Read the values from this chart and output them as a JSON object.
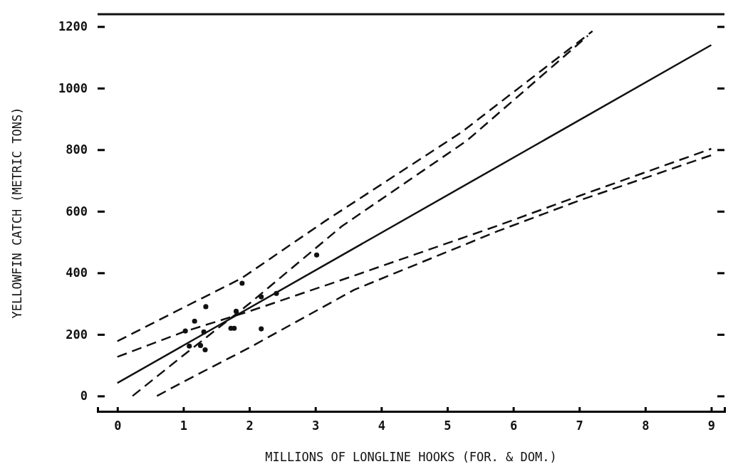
{
  "chart_data": {
    "type": "line",
    "xlabel": "MILLIONS OF LONGLINE HOOKS (FOR. & DOM.)",
    "ylabel": "YELLOWFIN CATCH (METRIC TONS)",
    "xlim": [
      -0.3,
      9.2
    ],
    "ylim": [
      -50,
      1240
    ],
    "xticks": [
      0,
      1,
      2,
      3,
      4,
      5,
      6,
      7,
      8,
      9
    ],
    "yticks": [
      0,
      200,
      400,
      600,
      800,
      1000,
      1200
    ],
    "grid": false,
    "series": [
      {
        "type": "scatter",
        "color": "#111111",
        "marker": "circle",
        "x": [
          3.02,
          1.89,
          1.34,
          1.17,
          1.03,
          1.31,
          1.33,
          1.09,
          1.26,
          1.77,
          1.72,
          1.8,
          2.18,
          2.41,
          2.18
        ],
        "values": [
          458,
          366,
          290,
          243,
          211,
          208,
          150,
          162,
          164,
          220,
          220,
          275,
          322,
          333,
          218
        ]
      },
      {
        "color": "#111111",
        "line_style": "solid",
        "x": [
          0,
          9
        ],
        "values": [
          42,
          1140
        ]
      },
      {
        "color": "#111111",
        "line_style": "dashed",
        "x": [
          0,
          1,
          1.88,
          3.14,
          5.21,
          7.2
        ],
        "values": [
          178,
          287,
          382,
          567,
          856,
          1185
        ]
      },
      {
        "color": "#111111",
        "line_style": "dashed",
        "x": [
          0.23,
          1,
          2,
          3.4,
          5.3,
          7.13
        ],
        "values": [
          0,
          132,
          300,
          551,
          830,
          1170
        ]
      },
      {
        "color": "#111111",
        "line_style": "dashed",
        "x": [
          0,
          1,
          2,
          3.59,
          5.76,
          7,
          9
        ],
        "values": [
          127,
          208,
          275,
          391,
          553,
          650,
          803
        ]
      },
      {
        "color": "#111111",
        "line_style": "dashed",
        "x": [
          0.6,
          1,
          2,
          3.59,
          5.76,
          7,
          9
        ],
        "values": [
          0,
          46,
          157,
          345,
          535,
          635,
          782
        ]
      }
    ]
  }
}
